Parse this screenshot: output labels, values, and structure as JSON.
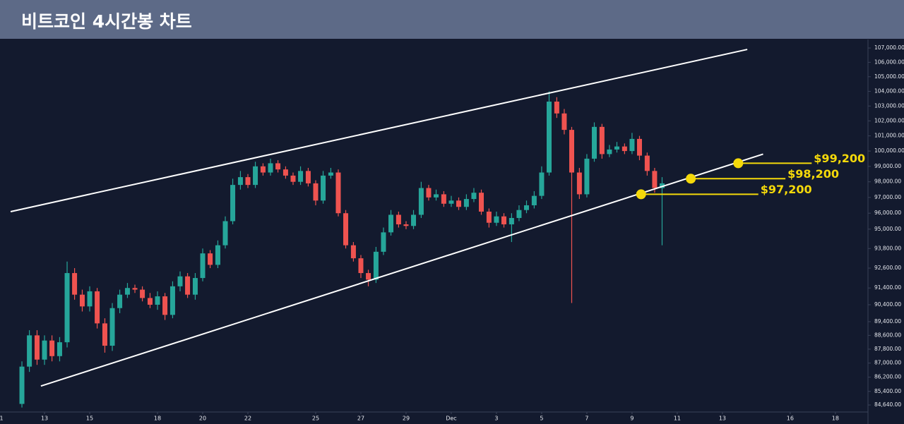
{
  "chart_data": {
    "type": "candlestick",
    "title": "비트코인 4시간봉 차트",
    "log_scale": true,
    "up_color": "#26a69a",
    "down_color": "#ef5350",
    "xlim": [
      11.03,
      49.41
    ],
    "ylim": [
      84290,
      107400
    ],
    "xticks": [
      {
        "value": 11,
        "label": "1"
      },
      13,
      15,
      18,
      20,
      22,
      25,
      27,
      29,
      {
        "value": 31,
        "label": "Dec"
      },
      {
        "value": 33,
        "label": "3"
      },
      {
        "value": 35,
        "label": "5"
      },
      {
        "value": 37,
        "label": "7"
      },
      {
        "value": 39,
        "label": "9"
      },
      {
        "value": 41,
        "label": "11"
      },
      {
        "value": 43,
        "label": "13"
      },
      {
        "value": 46,
        "label": "16"
      },
      {
        "value": 48,
        "label": "18"
      }
    ],
    "yticks": [
      {
        "value": 84640,
        "label": "84,640.00"
      },
      {
        "value": 85400,
        "label": "85,400.00"
      },
      {
        "value": 86200,
        "label": "86,200.00"
      },
      {
        "value": 87000,
        "label": "87,000.00"
      },
      {
        "value": 87800,
        "label": "87,800.00"
      },
      {
        "value": 88600,
        "label": "88,600.00"
      },
      {
        "value": 89400,
        "label": "89,400.00"
      },
      {
        "value": 90400,
        "label": "90,400.00"
      },
      {
        "value": 91400,
        "label": "91,400.00"
      },
      {
        "value": 92600,
        "label": "92,600.00"
      },
      {
        "value": 93800,
        "label": "93,800.00"
      },
      {
        "value": 95000,
        "label": "95,000.00"
      },
      {
        "value": 96000,
        "label": "96,000.00"
      },
      {
        "value": 97000,
        "label": "97,000.00"
      },
      {
        "value": 98000,
        "label": "98,000.00"
      },
      {
        "value": 99000,
        "label": "99,000.00"
      },
      {
        "value": 100000,
        "label": "100,000.00"
      },
      {
        "value": 101000,
        "label": "101,000.00"
      },
      {
        "value": 102000,
        "label": "102,000.00"
      },
      {
        "value": 103000,
        "label": "103,000.00"
      },
      {
        "value": 104000,
        "label": "104,000.00"
      },
      {
        "value": 105000,
        "label": "105,000.00"
      },
      {
        "value": 106000,
        "label": "106,000.00"
      },
      {
        "value": 107000,
        "label": "107,000.00"
      }
    ],
    "x": [
      12.0,
      12.33,
      12.67,
      13.0,
      13.33,
      13.67,
      14.0,
      14.33,
      14.67,
      15.0,
      15.33,
      15.67,
      16.0,
      16.33,
      16.67,
      17.0,
      17.33,
      17.67,
      18.0,
      18.33,
      18.67,
      19.0,
      19.33,
      19.67,
      20.0,
      20.33,
      20.67,
      21.0,
      21.33,
      21.67,
      22.0,
      22.33,
      22.67,
      23.0,
      23.33,
      23.67,
      24.0,
      24.33,
      24.67,
      25.0,
      25.33,
      25.67,
      26.0,
      26.33,
      26.67,
      27.0,
      27.33,
      27.67,
      28.0,
      28.33,
      28.67,
      29.0,
      29.33,
      29.67,
      30.0,
      30.33,
      30.67,
      31.0,
      31.33,
      31.67,
      32.0,
      32.33,
      32.67,
      33.0,
      33.33,
      33.67,
      34.0,
      34.33,
      34.67,
      35.0,
      35.33,
      35.67,
      36.0,
      36.33,
      36.67,
      37.0,
      37.33,
      37.67,
      38.0,
      38.33,
      38.67,
      39.0,
      39.33,
      39.67,
      40.0,
      40.33
    ],
    "open": [
      84700,
      86800,
      88600,
      87200,
      88300,
      87400,
      88200,
      92300,
      91000,
      90300,
      91200,
      89300,
      88000,
      90200,
      91000,
      91400,
      91300,
      90800,
      90400,
      90900,
      89800,
      91500,
      92100,
      91000,
      92000,
      93500,
      92800,
      94000,
      95500,
      97800,
      98300,
      97800,
      99000,
      98600,
      99200,
      98800,
      98400,
      98000,
      98700,
      97900,
      96800,
      98400,
      98600,
      96000,
      94000,
      93200,
      92300,
      91900,
      93600,
      94800,
      95900,
      95300,
      95200,
      95900,
      97600,
      97000,
      97200,
      96600,
      96800,
      96400,
      96900,
      97300,
      96100,
      95400,
      95800,
      95300,
      95700,
      96200,
      96500,
      97100,
      98600,
      103300,
      102500,
      101400,
      98600,
      97200,
      99500,
      101600,
      99800,
      100100,
      100300,
      100000,
      100800,
      99700,
      98700,
      97600
    ],
    "high": [
      87100,
      88900,
      88900,
      88600,
      88600,
      88500,
      93000,
      92600,
      91300,
      91500,
      91400,
      89600,
      90500,
      91300,
      91700,
      91600,
      91500,
      91100,
      91200,
      91100,
      91800,
      92400,
      92300,
      92300,
      93800,
      93700,
      94300,
      95800,
      98200,
      98700,
      98500,
      99300,
      99200,
      99500,
      99400,
      99000,
      98600,
      99000,
      98900,
      98100,
      98700,
      98900,
      98800,
      96200,
      94200,
      93400,
      92500,
      93900,
      95100,
      96200,
      96100,
      95500,
      96200,
      98000,
      97800,
      97500,
      97400,
      97100,
      97000,
      97200,
      97600,
      97500,
      96300,
      96100,
      96000,
      96000,
      96500,
      96800,
      97400,
      99000,
      104000,
      103600,
      102800,
      101600,
      98900,
      99800,
      101900,
      101800,
      100400,
      100600,
      100500,
      101200,
      101000,
      99900,
      98900,
      98300
    ],
    "low": [
      84500,
      86500,
      86900,
      86900,
      87100,
      87100,
      87900,
      90700,
      90000,
      90000,
      89000,
      87600,
      87700,
      89900,
      90800,
      91100,
      90600,
      90200,
      90100,
      89500,
      89600,
      91200,
      90800,
      90700,
      91800,
      92600,
      92600,
      93800,
      95300,
      97500,
      97600,
      97600,
      98400,
      98400,
      98600,
      98200,
      97800,
      97800,
      97700,
      96500,
      96600,
      98200,
      95800,
      93800,
      93000,
      92000,
      91500,
      91700,
      93400,
      94600,
      95100,
      95000,
      95000,
      95700,
      96800,
      96800,
      96400,
      96400,
      96200,
      96200,
      96700,
      95900,
      95100,
      95200,
      95100,
      94200,
      95500,
      96000,
      96300,
      96900,
      98400,
      102200,
      101100,
      90500,
      96900,
      97000,
      99300,
      99500,
      99600,
      99900,
      99800,
      99800,
      99400,
      98400,
      97300,
      94000
    ],
    "close": [
      86800,
      88600,
      87200,
      88300,
      87400,
      88200,
      92300,
      91000,
      90300,
      91200,
      89300,
      88000,
      90200,
      91000,
      91400,
      91300,
      90800,
      90400,
      90900,
      89800,
      91500,
      92100,
      91000,
      92000,
      93500,
      92800,
      94000,
      95500,
      97800,
      98300,
      97800,
      99000,
      98600,
      99200,
      98800,
      98400,
      98000,
      98700,
      97900,
      96800,
      98400,
      98600,
      96000,
      94000,
      93200,
      92300,
      91900,
      93600,
      94800,
      95900,
      95300,
      95200,
      95900,
      97600,
      97000,
      97200,
      96600,
      96800,
      96400,
      96900,
      97300,
      96100,
      95400,
      95800,
      95300,
      95700,
      96200,
      96500,
      97100,
      98600,
      103300,
      102500,
      101400,
      98600,
      97200,
      99500,
      101600,
      99800,
      100100,
      100300,
      100000,
      100800,
      99700,
      98700,
      97600,
      97900
    ],
    "trend_line_color": "#ffffff",
    "trend_lines": [
      {
        "x": [
          11.5,
          44.1
        ],
        "y": [
          96100,
          106900
        ]
      },
      {
        "x": [
          12.84,
          44.8
        ],
        "y": [
          85700,
          99800
        ]
      }
    ],
    "level_color": "#f5d90a",
    "levels": [
      {
        "x": 39.4,
        "value": 97200,
        "label": "$97,200"
      },
      {
        "x": 41.6,
        "value": 98200,
        "label": "$98,200"
      },
      {
        "x": 43.7,
        "value": 99200,
        "label": "$99,200"
      }
    ]
  }
}
